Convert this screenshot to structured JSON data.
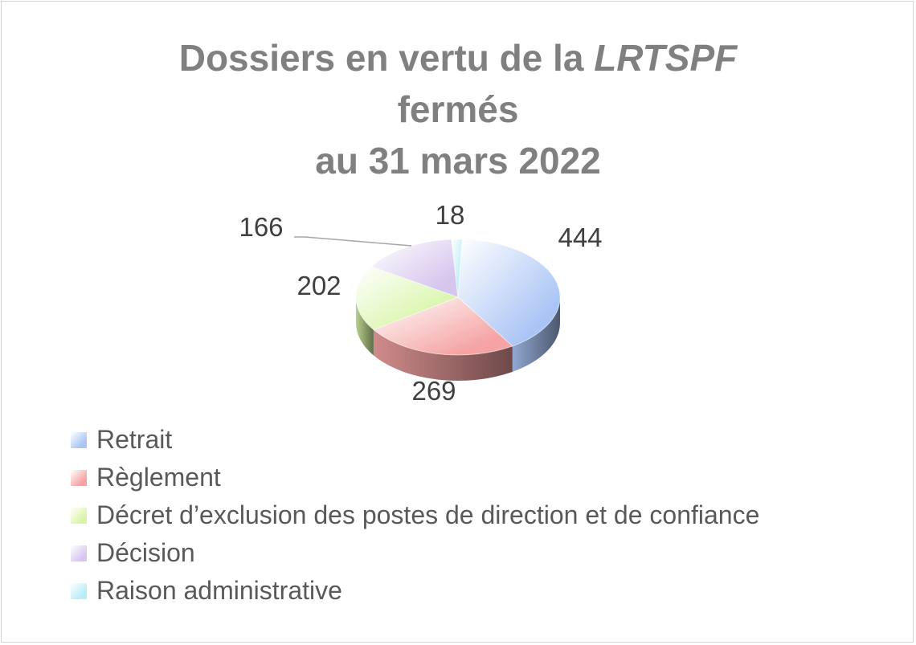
{
  "chart_data": {
    "type": "pie",
    "title": {
      "prefix": "Dossiers en vertu de la ",
      "emphasis": "LRTSPF",
      "line2": "fermés",
      "line3": "au 31 mars 2022"
    },
    "categories": [
      "Retrait",
      "Règlement",
      "Décret d’exclusion des postes de direction et de confiance",
      "Décision",
      "Raison administrative"
    ],
    "values": [
      444,
      269,
      202,
      166,
      18
    ],
    "data_labels": [
      "444",
      "269",
      "202",
      "166",
      "18"
    ],
    "colors": [
      "#a9c4f5",
      "#f5a3a3",
      "#d7f5a6",
      "#d6c6ee",
      "#b9ecf7"
    ],
    "style": "3d",
    "legend_position": "bottom-left"
  }
}
